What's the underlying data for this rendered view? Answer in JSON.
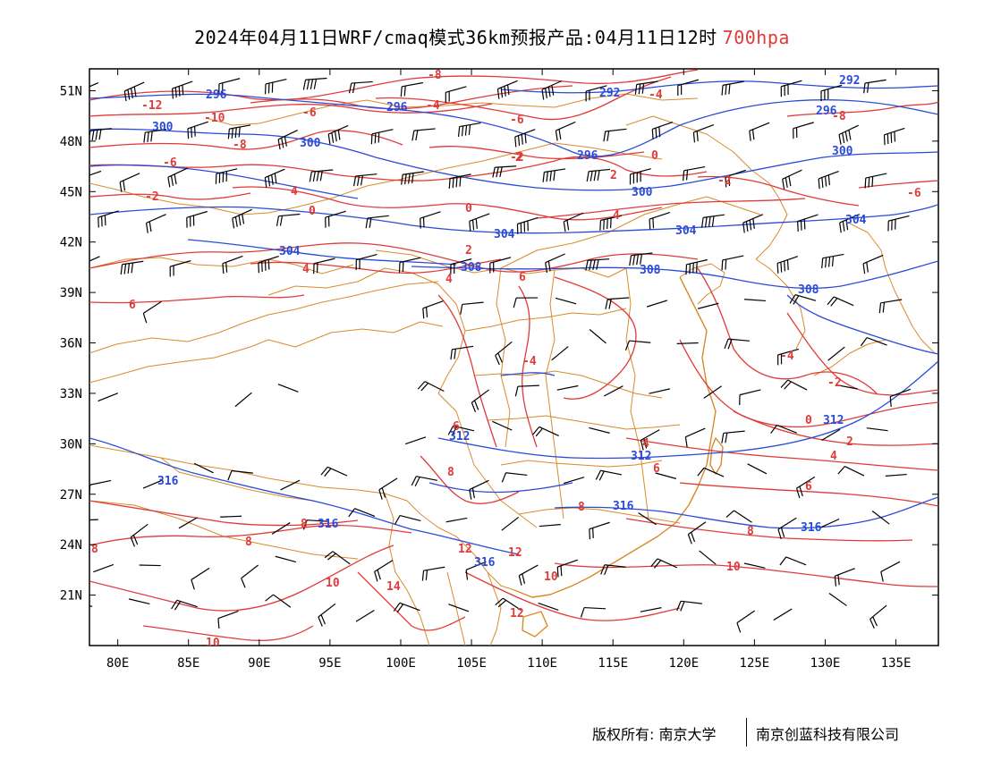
{
  "title": {
    "main": "2024年04月11日WRF/cmaq模式36km预报产品:04月11日12时",
    "level": "700hpa"
  },
  "colors": {
    "height_contour": "#2a4bd7",
    "temperature_contour": "#e03a3a",
    "borders": "#d98a2b",
    "wind_barbs": "#000000",
    "level_label": "#e03a3a"
  },
  "axes": {
    "lon_labels": [
      "80E",
      "85E",
      "90E",
      "95E",
      "100E",
      "105E",
      "110E",
      "115E",
      "120E",
      "125E",
      "130E",
      "135E"
    ],
    "lat_labels": [
      "51N",
      "48N",
      "45N",
      "42N",
      "39N",
      "36N",
      "33N",
      "30N",
      "27N",
      "24N",
      "21N"
    ]
  },
  "height_contours": {
    "name": "geopotential height (dagpm)",
    "levels": [
      "292",
      "296",
      "300",
      "304",
      "308",
      "312",
      "316"
    ]
  },
  "temperature_contours": {
    "name": "temperature (°C)",
    "levels": [
      "-12",
      "-10",
      "-8",
      "-6",
      "-4",
      "-2",
      "0",
      "2",
      "4",
      "6",
      "8",
      "10",
      "12",
      "14"
    ]
  },
  "footer": {
    "copyright": "版权所有: 南京大学",
    "company": "南京创蓝科技有限公司"
  }
}
